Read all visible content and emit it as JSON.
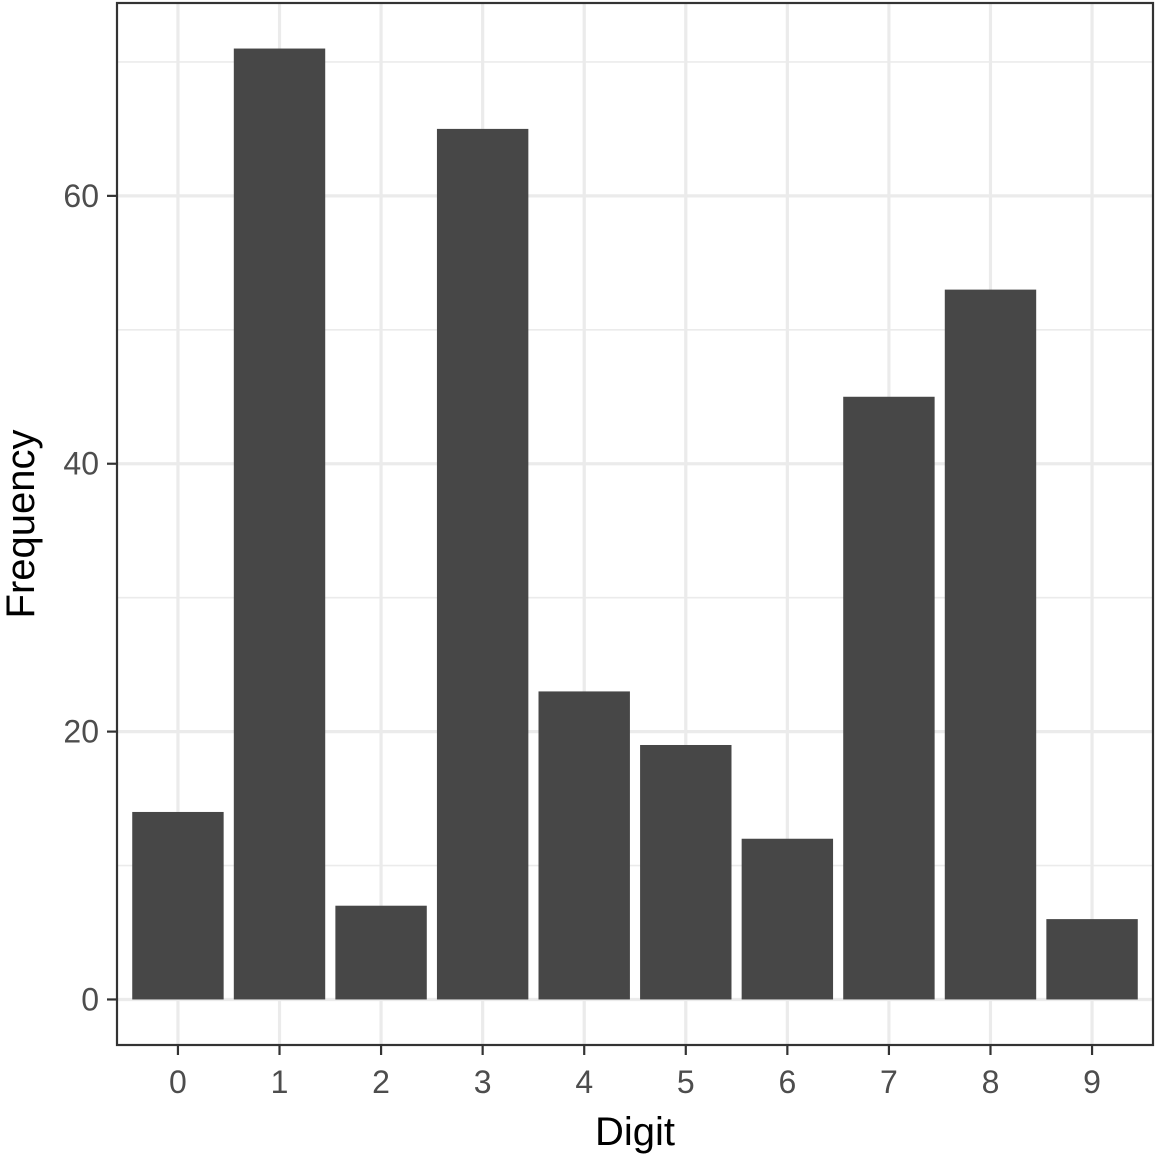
{
  "chart_data": {
    "type": "bar",
    "title": "",
    "xlabel": "Digit",
    "ylabel": "Frequency",
    "categories": [
      "0",
      "1",
      "2",
      "3",
      "4",
      "5",
      "6",
      "7",
      "8",
      "9"
    ],
    "values": [
      14,
      71,
      7,
      65,
      23,
      19,
      12,
      45,
      53,
      6
    ],
    "ylim": [
      -3.4,
      74.4
    ],
    "yticks": [
      0,
      20,
      40,
      60
    ],
    "yticks_minor": [
      10,
      30,
      50,
      70
    ],
    "grid": true,
    "colors": {
      "bar": "#474747",
      "grid": "#ebebeb",
      "panel_border": "#333333",
      "tick": "#333333"
    }
  }
}
